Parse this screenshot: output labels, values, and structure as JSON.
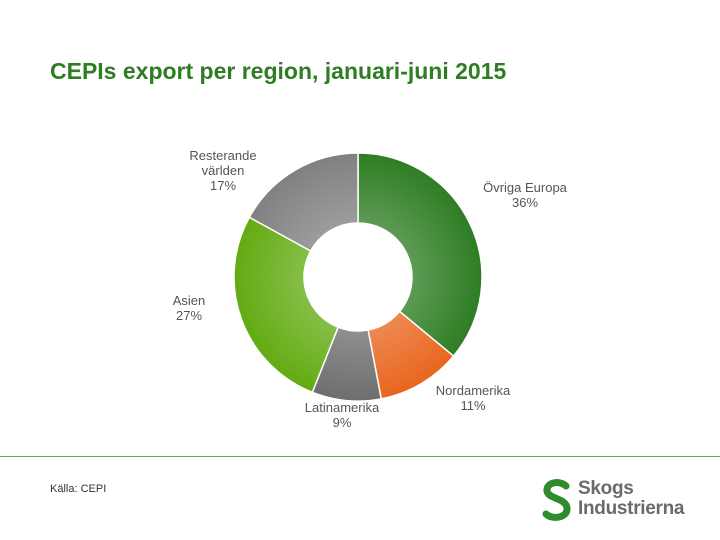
{
  "header": {
    "title": "CEPIs export per region, januari-juni 2015"
  },
  "footer": {
    "source": "Källa: CEPI"
  },
  "logo": {
    "line1": "Skogs",
    "line2": "Industrierna",
    "color": "#2e8b2e"
  },
  "chart_data": {
    "type": "pie",
    "variant": "donut",
    "title": "CEPIs export per region, januari-juni 2015",
    "series": [
      {
        "name": "Övriga Europa",
        "value": 36,
        "label_lines": [
          "Övriga  Europa",
          "36%"
        ],
        "color": "#2e7d23"
      },
      {
        "name": "Nordamerika",
        "value": 11,
        "label_lines": [
          "Nordamerika",
          "11%"
        ],
        "color": "#e8661e"
      },
      {
        "name": "Latinamerika",
        "value": 9,
        "label_lines": [
          "Latinamerika",
          "9%"
        ],
        "color": "#6e6e6e"
      },
      {
        "name": "Asien",
        "value": 27,
        "label_lines": [
          "Asien",
          "27%"
        ],
        "color": "#62ab12"
      },
      {
        "name": "Resterande världen",
        "value": 17,
        "label_lines": [
          "Resterande",
          "världen",
          "17%"
        ],
        "color": "#808080"
      }
    ]
  }
}
